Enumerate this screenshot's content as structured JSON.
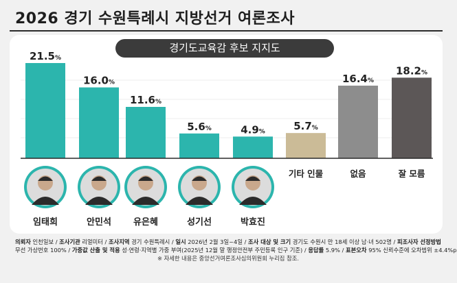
{
  "title": "2026 경기 수원특례시 지방선거 여론조사",
  "subtitle": "경기도교육감 후보 지지도",
  "chart_data": {
    "type": "bar",
    "title": "경기도교육감 후보 지지도",
    "unit": "%",
    "categories": [
      "임태희",
      "안민석",
      "유은혜",
      "성기선",
      "박효진",
      "기타 인물",
      "없음",
      "잘 모름"
    ],
    "values": [
      21.5,
      16.0,
      11.6,
      5.6,
      4.9,
      5.7,
      16.4,
      18.2
    ],
    "colors": [
      "#2cb5ad",
      "#2cb5ad",
      "#2cb5ad",
      "#2cb5ad",
      "#2cb5ad",
      "#cbbb97",
      "#8d8d8d",
      "#5c5757"
    ],
    "ylim": [
      0,
      21.5
    ],
    "grid": true,
    "legend": "none"
  },
  "footer": {
    "l1_k1": "의뢰자",
    "l1_v1": "인천일보",
    "l1_k2": "조사기관",
    "l1_v2": "리얼미터",
    "l1_k3": "조사지역",
    "l1_v3": "경기 수원특례시",
    "l1_k4": "일시",
    "l1_v4": "2026년 2월 3일~4일",
    "l1_k5": "조사 대상 및 크기",
    "l1_v5": "경기도 수원시 만 18세 이상 남·녀 502명",
    "l1_k6": "피조사자 선정방법",
    "l2_v1": "무선 가상번호 100%",
    "l2_k2": "가중값 산출 및 적용",
    "l2_v2": "성·연령·지역별 가중 부여(2025년 12월 말 행정안전부 주민등록 인구 기준)",
    "l2_k3": "응답률",
    "l2_v3": "5.9%",
    "l2_k4": "표본오차",
    "l2_v4": "95% 신뢰수준에 오차범위 ±4.4%p",
    "note": "※ 자세한 내용은 중앙선거여론조사심의위원회 누리집 참조."
  }
}
